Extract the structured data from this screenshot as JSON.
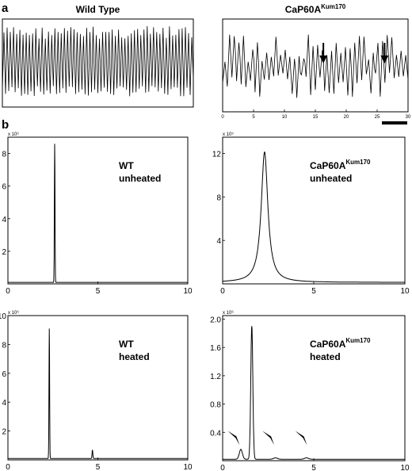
{
  "panel_a_label": "a",
  "panel_b_label": "b",
  "chart_data": [
    {
      "id": "a_wt",
      "type": "line",
      "title": "Wild Type",
      "xlim": [
        0,
        30
      ],
      "ylim": [
        0,
        1
      ],
      "x_ticks": [],
      "y_ticks": [],
      "signal": {
        "kind": "oscillation",
        "cycles": 60,
        "low": 0.12,
        "high": 0.92
      }
    },
    {
      "id": "a_mut",
      "type": "line",
      "title": "CaP60A",
      "title_sup": "Kum170",
      "xlim": [
        0,
        30
      ],
      "ylim": [
        0,
        1
      ],
      "x_ticks": [
        0,
        5,
        10,
        15,
        20,
        25,
        30
      ],
      "y_ticks": [],
      "arrows_at_x": [
        16.3,
        26.2
      ],
      "scale_bar": true,
      "signal": {
        "kind": "irregular",
        "cycles": 40,
        "low": 0.15,
        "high": 0.85
      }
    },
    {
      "id": "b_wt_unheated",
      "type": "line",
      "annotation": [
        "WT",
        "unheated"
      ],
      "multiplier": "x 10⁶",
      "xlim": [
        0,
        10
      ],
      "ylim": [
        0,
        9
      ],
      "x_ticks": [
        0,
        5,
        10
      ],
      "y_ticks": [
        2,
        4,
        6,
        8
      ],
      "peaks": [
        {
          "x": 2.6,
          "height": 8.5,
          "width": 0.025
        }
      ]
    },
    {
      "id": "b_mut_unheated",
      "type": "line",
      "annotation": [
        "CaP60A",
        "unheated"
      ],
      "annotation_sup": "Kum170",
      "multiplier": "x 10⁵",
      "xlim": [
        0,
        10
      ],
      "ylim": [
        0,
        13.5
      ],
      "x_ticks": [
        0,
        5,
        10
      ],
      "y_ticks": [
        4,
        8,
        12
      ],
      "peaks": [
        {
          "x": 2.3,
          "height": 12.0,
          "width": 0.22,
          "shape": "lorentz"
        }
      ]
    },
    {
      "id": "b_wt_heated",
      "type": "line",
      "annotation": [
        "WT",
        "heated"
      ],
      "multiplier": "x 10⁶",
      "xlim": [
        0,
        10
      ],
      "ylim": [
        0,
        10
      ],
      "x_ticks": [
        0,
        5,
        10
      ],
      "y_ticks": [
        2,
        4,
        6,
        8,
        10
      ],
      "peaks": [
        {
          "x": 2.3,
          "height": 9.0,
          "width": 0.025
        },
        {
          "x": 4.7,
          "height": 0.6,
          "width": 0.03
        }
      ]
    },
    {
      "id": "b_mut_heated",
      "type": "line",
      "annotation": [
        "CaP60A",
        "heated"
      ],
      "annotation_sup": "Kum170",
      "multiplier": "x 10⁶",
      "xlim": [
        0,
        10
      ],
      "ylim": [
        0,
        2.05
      ],
      "x_ticks": [
        0,
        5,
        10
      ],
      "y_ticks": [
        0.4,
        0.8,
        1.2,
        1.6,
        2.0
      ],
      "y_tick_labels": [
        "0.4",
        "0.8",
        "1.2",
        "1.6",
        "2.0"
      ],
      "peaks": [
        {
          "x": 1.6,
          "height": 1.88,
          "width": 0.08
        },
        {
          "x": 1.0,
          "height": 0.14,
          "width": 0.12
        },
        {
          "x": 2.9,
          "height": 0.02,
          "width": 0.15
        },
        {
          "x": 4.6,
          "height": 0.02,
          "width": 0.15
        }
      ],
      "arrowheads_at_x": [
        0.8,
        2.7,
        4.5
      ]
    }
  ]
}
